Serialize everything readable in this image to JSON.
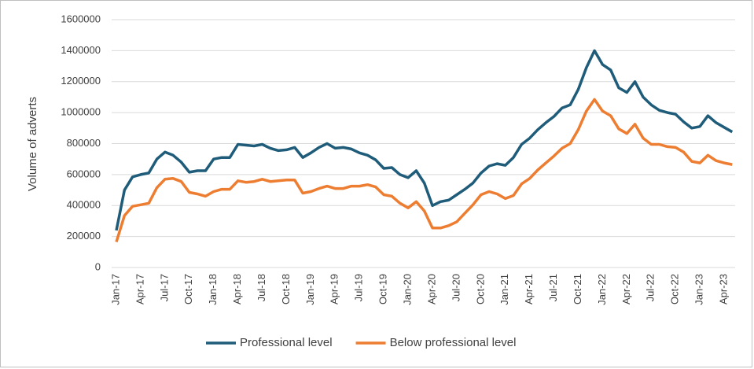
{
  "chart_data": {
    "type": "line",
    "y_label": "Volume of adverts",
    "categories": [
      "Jan-17",
      null,
      null,
      "Apr-17",
      null,
      null,
      "Jul-17",
      null,
      null,
      "Oct-17",
      null,
      null,
      "Jan-18",
      null,
      null,
      "Apr-18",
      null,
      null,
      "Jul-18",
      null,
      null,
      "Oct-18",
      null,
      null,
      "Jan-19",
      null,
      null,
      "Apr-19",
      null,
      null,
      "Jul-19",
      null,
      null,
      "Oct-19",
      null,
      null,
      "Jan-20",
      null,
      null,
      "Apr-20",
      null,
      null,
      "Jul-20",
      null,
      null,
      "Oct-20",
      null,
      null,
      "Jan-21",
      null,
      null,
      "Apr-21",
      null,
      null,
      "Jul-21",
      null,
      null,
      "Oct-21",
      null,
      null,
      "Jan-22",
      null,
      null,
      "Apr-22",
      null,
      null,
      "Jul-22",
      null,
      null,
      "Oct-22",
      null,
      null,
      "Jan-23",
      null,
      null,
      "Apr-23",
      null
    ],
    "series": [
      {
        "name": "Professional level",
        "color": "#1f5c7a",
        "values": [
          240000,
          500000,
          585000,
          600000,
          610000,
          700000,
          745000,
          725000,
          680000,
          615000,
          625000,
          625000,
          700000,
          710000,
          710000,
          795000,
          790000,
          785000,
          795000,
          770000,
          755000,
          760000,
          775000,
          710000,
          740000,
          775000,
          800000,
          770000,
          775000,
          765000,
          740000,
          725000,
          695000,
          640000,
          645000,
          600000,
          580000,
          625000,
          545000,
          400000,
          425000,
          435000,
          470000,
          505000,
          545000,
          610000,
          655000,
          670000,
          660000,
          710000,
          795000,
          835000,
          890000,
          935000,
          975000,
          1030000,
          1050000,
          1150000,
          1290000,
          1400000,
          1310000,
          1275000,
          1160000,
          1130000,
          1200000,
          1100000,
          1050000,
          1015000,
          1000000,
          990000,
          940000,
          900000,
          910000,
          980000,
          935000,
          905000,
          875000
        ]
      },
      {
        "name": "Below professional level",
        "color": "#ed7d31",
        "values": [
          165000,
          335000,
          395000,
          405000,
          415000,
          515000,
          570000,
          575000,
          555000,
          485000,
          475000,
          460000,
          490000,
          505000,
          505000,
          560000,
          550000,
          555000,
          570000,
          555000,
          560000,
          565000,
          565000,
          480000,
          490000,
          510000,
          525000,
          510000,
          510000,
          525000,
          525000,
          535000,
          520000,
          470000,
          460000,
          415000,
          385000,
          425000,
          365000,
          255000,
          255000,
          270000,
          295000,
          350000,
          405000,
          470000,
          490000,
          475000,
          445000,
          465000,
          540000,
          575000,
          630000,
          675000,
          720000,
          770000,
          800000,
          890000,
          1010000,
          1085000,
          1010000,
          980000,
          895000,
          865000,
          925000,
          835000,
          795000,
          795000,
          780000,
          775000,
          745000,
          685000,
          675000,
          725000,
          690000,
          675000,
          665000
        ]
      }
    ],
    "ylim": [
      0,
      1600000
    ],
    "yticks": [
      0,
      200000,
      400000,
      600000,
      800000,
      1000000,
      1200000,
      1400000,
      1600000
    ],
    "grid": true,
    "legend": "bottom"
  }
}
